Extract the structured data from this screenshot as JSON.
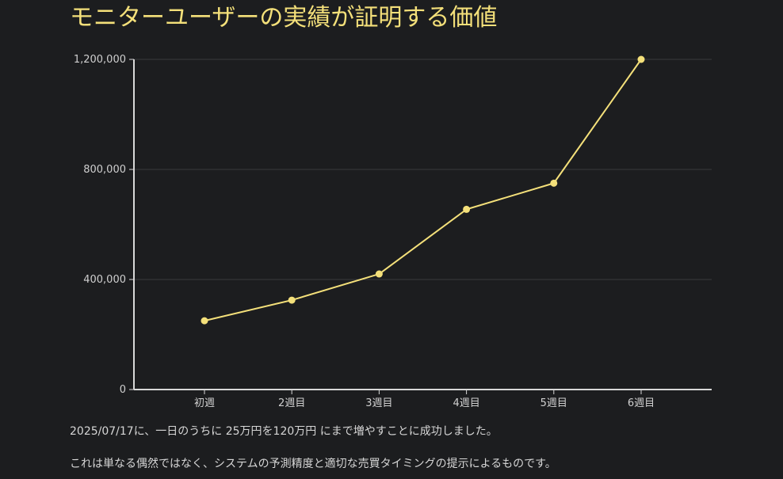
{
  "page": {
    "title": "モニターユーザーの実績が証明する価値",
    "captions": [
      "2025/07/17に、一日のうちに 25万円を120万円 にまで増やすことに成功しました。",
      "これは単なる偶然ではなく、システムの予測精度と適切な売買タイミングの提示によるものです。"
    ]
  },
  "colors": {
    "background": "#1c1d1f",
    "accent": "#f4e07a",
    "axis": "#d8d8d8",
    "grid": "#3a3b3d",
    "text": "#d6d6d6"
  },
  "chart_data": {
    "type": "line",
    "title": "",
    "xlabel": "",
    "ylabel": "",
    "categories": [
      "初週",
      "2週目",
      "3週目",
      "4週目",
      "5週目",
      "6週目"
    ],
    "series": [
      {
        "values": [
          250000,
          325000,
          420000,
          655000,
          750000,
          1200000
        ]
      }
    ],
    "ylim": [
      0,
      1200000
    ],
    "yticks": [
      0,
      400000,
      800000,
      1200000
    ],
    "ytick_labels": [
      "0",
      "400,000",
      "800,000",
      "1,200,000"
    ],
    "grid": "horizontal",
    "legend": "none",
    "markers": true
  }
}
